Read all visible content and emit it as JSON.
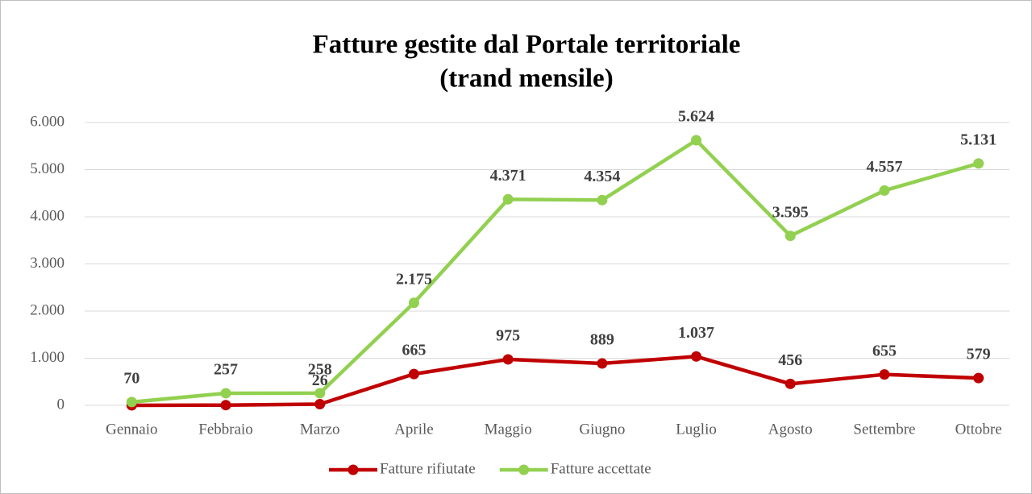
{
  "chart_data": {
    "type": "line",
    "title": [
      "Fatture gestite dal Portale territoriale",
      "(trand mensile)"
    ],
    "categories": [
      "Gennaio",
      "Febbraio",
      "Marzo",
      "Aprile",
      "Maggio",
      "Giugno",
      "Luglio",
      "Agosto",
      "Settembre",
      "Ottobre"
    ],
    "series": [
      {
        "name": "Fatture rifiutate",
        "color": "#c00000",
        "values": [
          0,
          5,
          26,
          665,
          975,
          889,
          1037,
          456,
          655,
          579
        ],
        "value_labels": [
          null,
          null,
          "26",
          "665",
          "975",
          "889",
          "1.037",
          "456",
          "655",
          "579"
        ]
      },
      {
        "name": "Fatture accettate",
        "color": "#92d050",
        "values": [
          70,
          257,
          258,
          2175,
          4371,
          4354,
          5624,
          3595,
          4557,
          5131
        ],
        "value_labels": [
          "70",
          "257",
          "258",
          "2.175",
          "4.371",
          "4.354",
          "5.624",
          "3.595",
          "4.557",
          "5.131"
        ]
      }
    ],
    "ylim": [
      0,
      6000
    ],
    "yticks": [
      0,
      {
        "value": 1000,
        "label": "1.000"
      },
      {
        "value": 2000,
        "label": "2.000"
      },
      {
        "value": 3000,
        "label": "3.000"
      },
      {
        "value": 4000,
        "label": "4.000"
      },
      {
        "value": 5000,
        "label": "5.000"
      },
      {
        "value": 6000,
        "label": "6.000"
      }
    ],
    "grid": true,
    "legend": "bottom"
  }
}
